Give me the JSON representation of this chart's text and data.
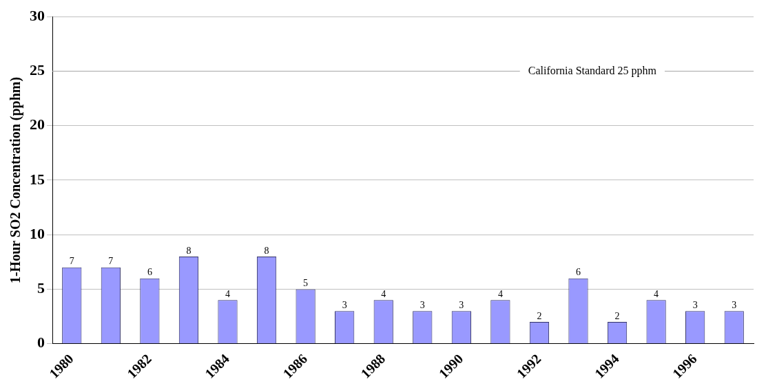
{
  "chart_data": {
    "type": "bar",
    "ylabel": "1-Hour SO2 Concentration (pphm)",
    "categories": [
      "1980",
      null,
      "1982",
      null,
      "1984",
      null,
      "1986",
      null,
      "1988",
      null,
      "1990",
      null,
      "1992",
      null,
      "1994",
      null,
      "1996",
      null
    ],
    "values": [
      7,
      7,
      6,
      8,
      4,
      8,
      5,
      3,
      4,
      3,
      3,
      4,
      2,
      6,
      2,
      4,
      3,
      3
    ],
    "color": "#9999ff",
    "ylim": [
      0,
      30
    ],
    "yticks": [
      0,
      5,
      10,
      15,
      20,
      25,
      30
    ],
    "grid": "y",
    "legend": false,
    "data_labels": true,
    "ref_lines": [
      {
        "axis": "y",
        "value": 25,
        "label": "California Standard 25 pphm",
        "color": "#a6a6a6"
      }
    ]
  }
}
